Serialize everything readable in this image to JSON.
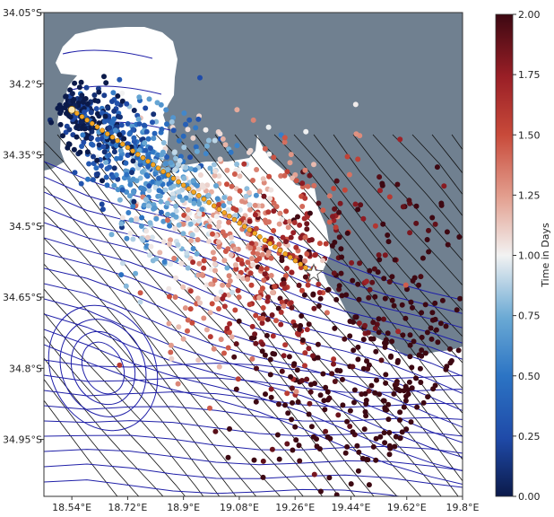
{
  "map": {
    "x_ticks": [
      {
        "value": 18.54,
        "label": "18.54°E"
      },
      {
        "value": 18.72,
        "label": "18.72°E"
      },
      {
        "value": 18.9,
        "label": "18.9°E"
      },
      {
        "value": 19.08,
        "label": "19.08°E"
      },
      {
        "value": 19.26,
        "label": "19.26°E"
      },
      {
        "value": 19.44,
        "label": "19.44°E"
      },
      {
        "value": 19.62,
        "label": "19.62°E"
      },
      {
        "value": 19.8,
        "label": "19.8°E"
      }
    ],
    "y_ticks": [
      {
        "value": -34.05,
        "label": "34.05°S"
      },
      {
        "value": -34.2,
        "label": "34.2°S"
      },
      {
        "value": -34.35,
        "label": "34.35°S"
      },
      {
        "value": -34.5,
        "label": "34.5°S"
      },
      {
        "value": -34.65,
        "label": "34.65°S"
      },
      {
        "value": -34.8,
        "label": "34.8°S"
      },
      {
        "value": -34.95,
        "label": "34.95°S"
      }
    ],
    "lon_range": [
      18.45,
      19.8
    ],
    "lat_range": [
      -35.07,
      -34.05
    ],
    "land_color": "#708090",
    "ocean_color": "#ffffff",
    "streamline_colors": [
      "#1f1fa8",
      "#111111"
    ],
    "track_color": "#f5a623",
    "track": {
      "start": {
        "lon": 18.54,
        "lat": -34.255
      },
      "end": {
        "lon": 19.31,
        "lat": -34.595
      },
      "points": 48
    },
    "release_point": {
      "lon": 19.32,
      "lat": -34.6,
      "marker": "star-icon"
    }
  },
  "colorbar": {
    "label": "Time in Days",
    "colormap": "RdBu_r",
    "range": [
      0,
      2
    ],
    "ticks": [
      "0.00",
      "0.25",
      "0.50",
      "0.75",
      "1.00",
      "1.25",
      "1.50",
      "1.75",
      "2.00"
    ]
  }
}
